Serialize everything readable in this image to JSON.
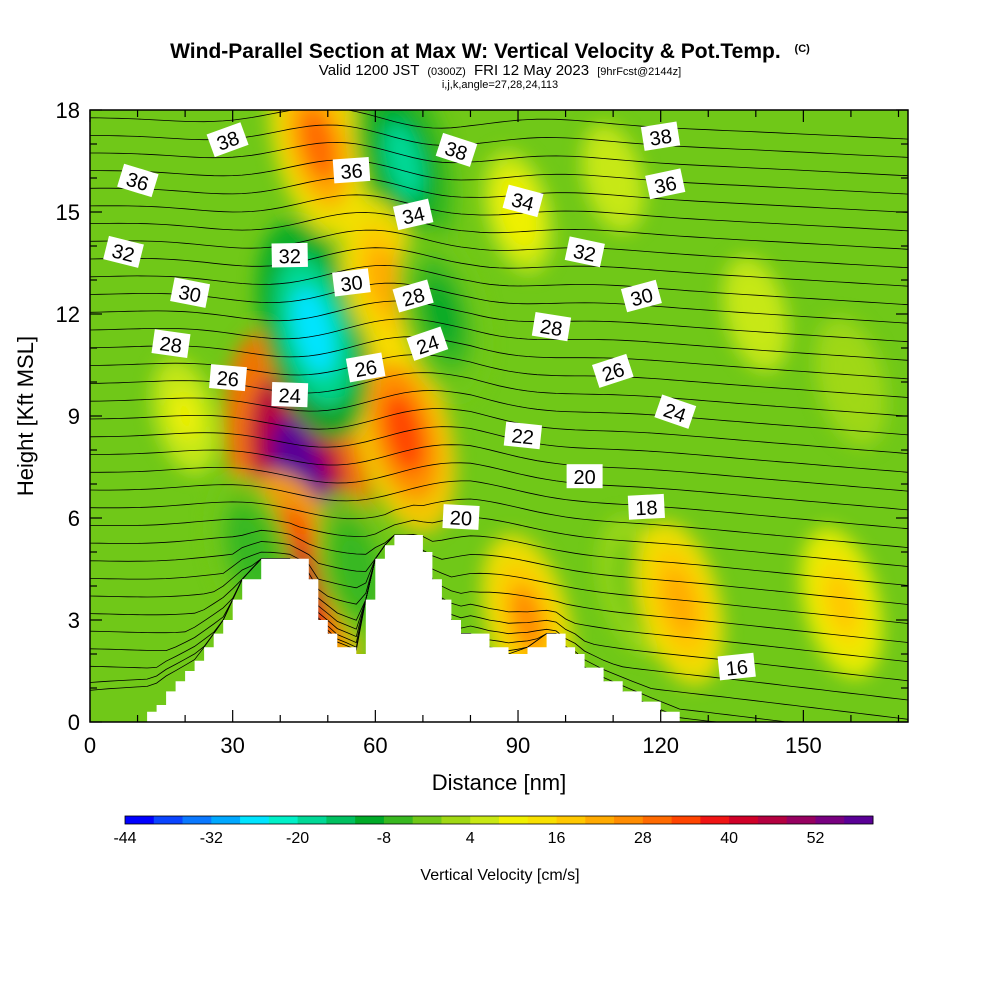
{
  "title": {
    "main": "Wind-Parallel Section at Max W: Vertical Velocity & Pot.Temp.",
    "main_sup": "(C)",
    "valid_prefix": "Valid 1200 JST",
    "valid_utc": "(0300Z)",
    "valid_date": "FRI 12 May 2023",
    "forecast": "[9hrFcst@2144z]",
    "indices": "i,j,k,angle=27,28,24,113"
  },
  "colors": {
    "background": "#ffffff",
    "terrain": "#ffffff",
    "contour_line": "#000000",
    "palette": [
      "#0000ff",
      "#0a44ff",
      "#0a78ff",
      "#00a8ff",
      "#00e4ff",
      "#00f0c8",
      "#00d896",
      "#00c060",
      "#00aa28",
      "#38b820",
      "#70c818",
      "#a0d814",
      "#c8e814",
      "#f0f000",
      "#f8e000",
      "#ffc800",
      "#ffaa00",
      "#ff8c00",
      "#ff6a00",
      "#ff4400",
      "#f01414",
      "#d00028",
      "#b40040",
      "#960060",
      "#780080",
      "#5a0096"
    ]
  },
  "chart_data": {
    "type": "heatmap",
    "xlabel": "Distance [nm]",
    "ylabel": "Height [Kft MSL]",
    "xlim": [
      0,
      172
    ],
    "ylim": [
      0,
      18
    ],
    "xticks": [
      "0",
      "30",
      "60",
      "90",
      "120",
      "150"
    ],
    "yticks": [
      "0",
      "3",
      "6",
      "9",
      "12",
      "15",
      "18"
    ],
    "terrain_profile": {
      "x": [
        0,
        12,
        14,
        16,
        18,
        20,
        22,
        24,
        26,
        28,
        30,
        32,
        36,
        42,
        46,
        48,
        50,
        52,
        56,
        58,
        60,
        62,
        64,
        68,
        70,
        72,
        74,
        76,
        78,
        80,
        84,
        88,
        92,
        96,
        98,
        100,
        102,
        104,
        108,
        112,
        116,
        120,
        124,
        172
      ],
      "height_kft": [
        0,
        0.3,
        0.5,
        0.9,
        1.2,
        1.5,
        1.8,
        2.2,
        2.6,
        3.0,
        3.6,
        4.2,
        4.8,
        4.8,
        4.2,
        3.0,
        2.6,
        2.2,
        2.0,
        3.6,
        4.8,
        5.2,
        5.5,
        5.5,
        5.0,
        4.2,
        3.6,
        3.0,
        2.6,
        2.6,
        2.2,
        2.0,
        2.2,
        2.6,
        2.6,
        2.2,
        2.0,
        1.6,
        1.2,
        0.9,
        0.6,
        0.3,
        0,
        0
      ]
    },
    "vertical_velocity_features": [
      {
        "x": 44,
        "y": 7.2,
        "value": 55
      },
      {
        "x": 44,
        "y": 4.0,
        "value": 35
      },
      {
        "x": 66,
        "y": 8.5,
        "value": 26
      },
      {
        "x": 48,
        "y": 17.0,
        "value": 22
      },
      {
        "x": 66,
        "y": 16.5,
        "value": -24
      },
      {
        "x": 47,
        "y": 11.5,
        "value": -32
      },
      {
        "x": 62,
        "y": 13.0,
        "value": 16
      },
      {
        "x": 74,
        "y": 12.0,
        "value": -18
      },
      {
        "x": 34,
        "y": 5.0,
        "value": -14
      },
      {
        "x": 56,
        "y": 4.5,
        "value": -14
      },
      {
        "x": 115,
        "y": 4.0,
        "value": -9
      },
      {
        "x": 124,
        "y": 3.5,
        "value": 16
      },
      {
        "x": 158,
        "y": 3.5,
        "value": 12
      },
      {
        "x": 92,
        "y": 3.0,
        "value": 18
      },
      {
        "x": 20,
        "y": 9.0,
        "value": 2
      },
      {
        "x": 140,
        "y": 12.0,
        "value": -2
      },
      {
        "x": 160,
        "y": 10.0,
        "value": -6
      },
      {
        "x": 90,
        "y": 15.0,
        "value": 4
      },
      {
        "x": 110,
        "y": 16.0,
        "value": 0
      }
    ],
    "potential_temperature_contour_labels": [
      {
        "text": "38",
        "x": 29,
        "y": 17.1
      },
      {
        "text": "36",
        "x": 10,
        "y": 15.9
      },
      {
        "text": "32",
        "x": 7,
        "y": 13.8
      },
      {
        "text": "30",
        "x": 21,
        "y": 12.6
      },
      {
        "text": "28",
        "x": 17,
        "y": 11.1
      },
      {
        "text": "26",
        "x": 29,
        "y": 10.1
      },
      {
        "text": "24",
        "x": 42,
        "y": 9.6
      },
      {
        "text": "32",
        "x": 42,
        "y": 13.7
      },
      {
        "text": "36",
        "x": 55,
        "y": 16.2
      },
      {
        "text": "30",
        "x": 55,
        "y": 12.9
      },
      {
        "text": "26",
        "x": 58,
        "y": 10.4
      },
      {
        "text": "34",
        "x": 68,
        "y": 14.9
      },
      {
        "text": "28",
        "x": 68,
        "y": 12.5
      },
      {
        "text": "24",
        "x": 71,
        "y": 11.1
      },
      {
        "text": "38",
        "x": 77,
        "y": 16.8
      },
      {
        "text": "34",
        "x": 91,
        "y": 15.3
      },
      {
        "text": "32",
        "x": 104,
        "y": 13.8
      },
      {
        "text": "28",
        "x": 97,
        "y": 11.6
      },
      {
        "text": "22",
        "x": 91,
        "y": 8.4
      },
      {
        "text": "20",
        "x": 78,
        "y": 6.0
      },
      {
        "text": "20",
        "x": 104,
        "y": 7.2
      },
      {
        "text": "18",
        "x": 117,
        "y": 6.3
      },
      {
        "text": "16",
        "x": 136,
        "y": 1.6
      },
      {
        "text": "38",
        "x": 120,
        "y": 17.2
      },
      {
        "text": "36",
        "x": 121,
        "y": 15.8
      },
      {
        "text": "30",
        "x": 116,
        "y": 12.5
      },
      {
        "text": "26",
        "x": 110,
        "y": 10.3
      },
      {
        "text": "24",
        "x": 123,
        "y": 9.1
      }
    ],
    "colorbar": {
      "title": "Vertical Velocity [cm/s]",
      "tick_labels": [
        "-44",
        "-32",
        "-20",
        "-8",
        "4",
        "16",
        "28",
        "40",
        "52"
      ]
    }
  }
}
